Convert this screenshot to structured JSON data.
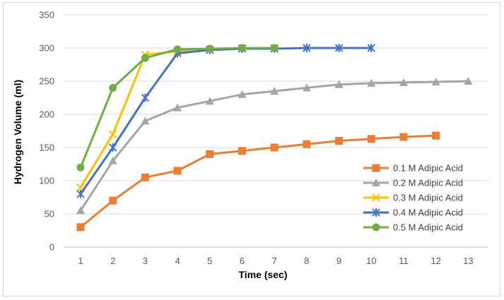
{
  "chart_data": {
    "type": "line",
    "title": "",
    "xlabel": "Time (sec)",
    "ylabel": "Hydrogen Volume (ml)",
    "xlim": [
      1,
      13
    ],
    "ylim": [
      0,
      350
    ],
    "y_ticks": [
      0,
      50,
      100,
      150,
      200,
      250,
      300,
      350
    ],
    "x_ticks": [
      1,
      2,
      3,
      4,
      5,
      6,
      7,
      8,
      9,
      10,
      11,
      12,
      13
    ],
    "grid": true,
    "legend_position": "right",
    "series": [
      {
        "name": "0.1 M Adipic Acid",
        "color": "#ed7d31",
        "marker": "square",
        "x": [
          1,
          2,
          3,
          4,
          5,
          6,
          7,
          8,
          9,
          10,
          11,
          12
        ],
        "values": [
          30,
          70,
          105,
          115,
          140,
          145,
          150,
          155,
          160,
          163,
          166,
          168
        ]
      },
      {
        "name": "0.2 M Adipic Acid",
        "color": "#a5a5a5",
        "marker": "triangle",
        "x": [
          1,
          2,
          3,
          4,
          5,
          6,
          7,
          8,
          9,
          10,
          11,
          12,
          13
        ],
        "values": [
          55,
          130,
          190,
          210,
          220,
          230,
          235,
          240,
          245,
          247,
          248,
          249,
          250
        ]
      },
      {
        "name": "0.3 M Adipic Acid",
        "color": "#ffc000",
        "marker": "x",
        "x": [
          1,
          2,
          3,
          4,
          5,
          6,
          7
        ],
        "values": [
          90,
          170,
          290,
          295,
          298,
          300,
          300
        ]
      },
      {
        "name": "0.4 M Adipic Acid",
        "color": "#4472c4",
        "marker": "star",
        "x": [
          1,
          2,
          3,
          4,
          5,
          6,
          7,
          8,
          9,
          10
        ],
        "values": [
          80,
          150,
          225,
          292,
          297,
          299,
          299,
          300,
          300,
          300
        ]
      },
      {
        "name": "0.5 M Adipic Acid",
        "color": "#70ad47",
        "marker": "circle",
        "x": [
          1,
          2,
          3,
          4,
          5,
          6,
          7
        ],
        "values": [
          120,
          240,
          285,
          298,
          299,
          300,
          300
        ]
      }
    ]
  }
}
